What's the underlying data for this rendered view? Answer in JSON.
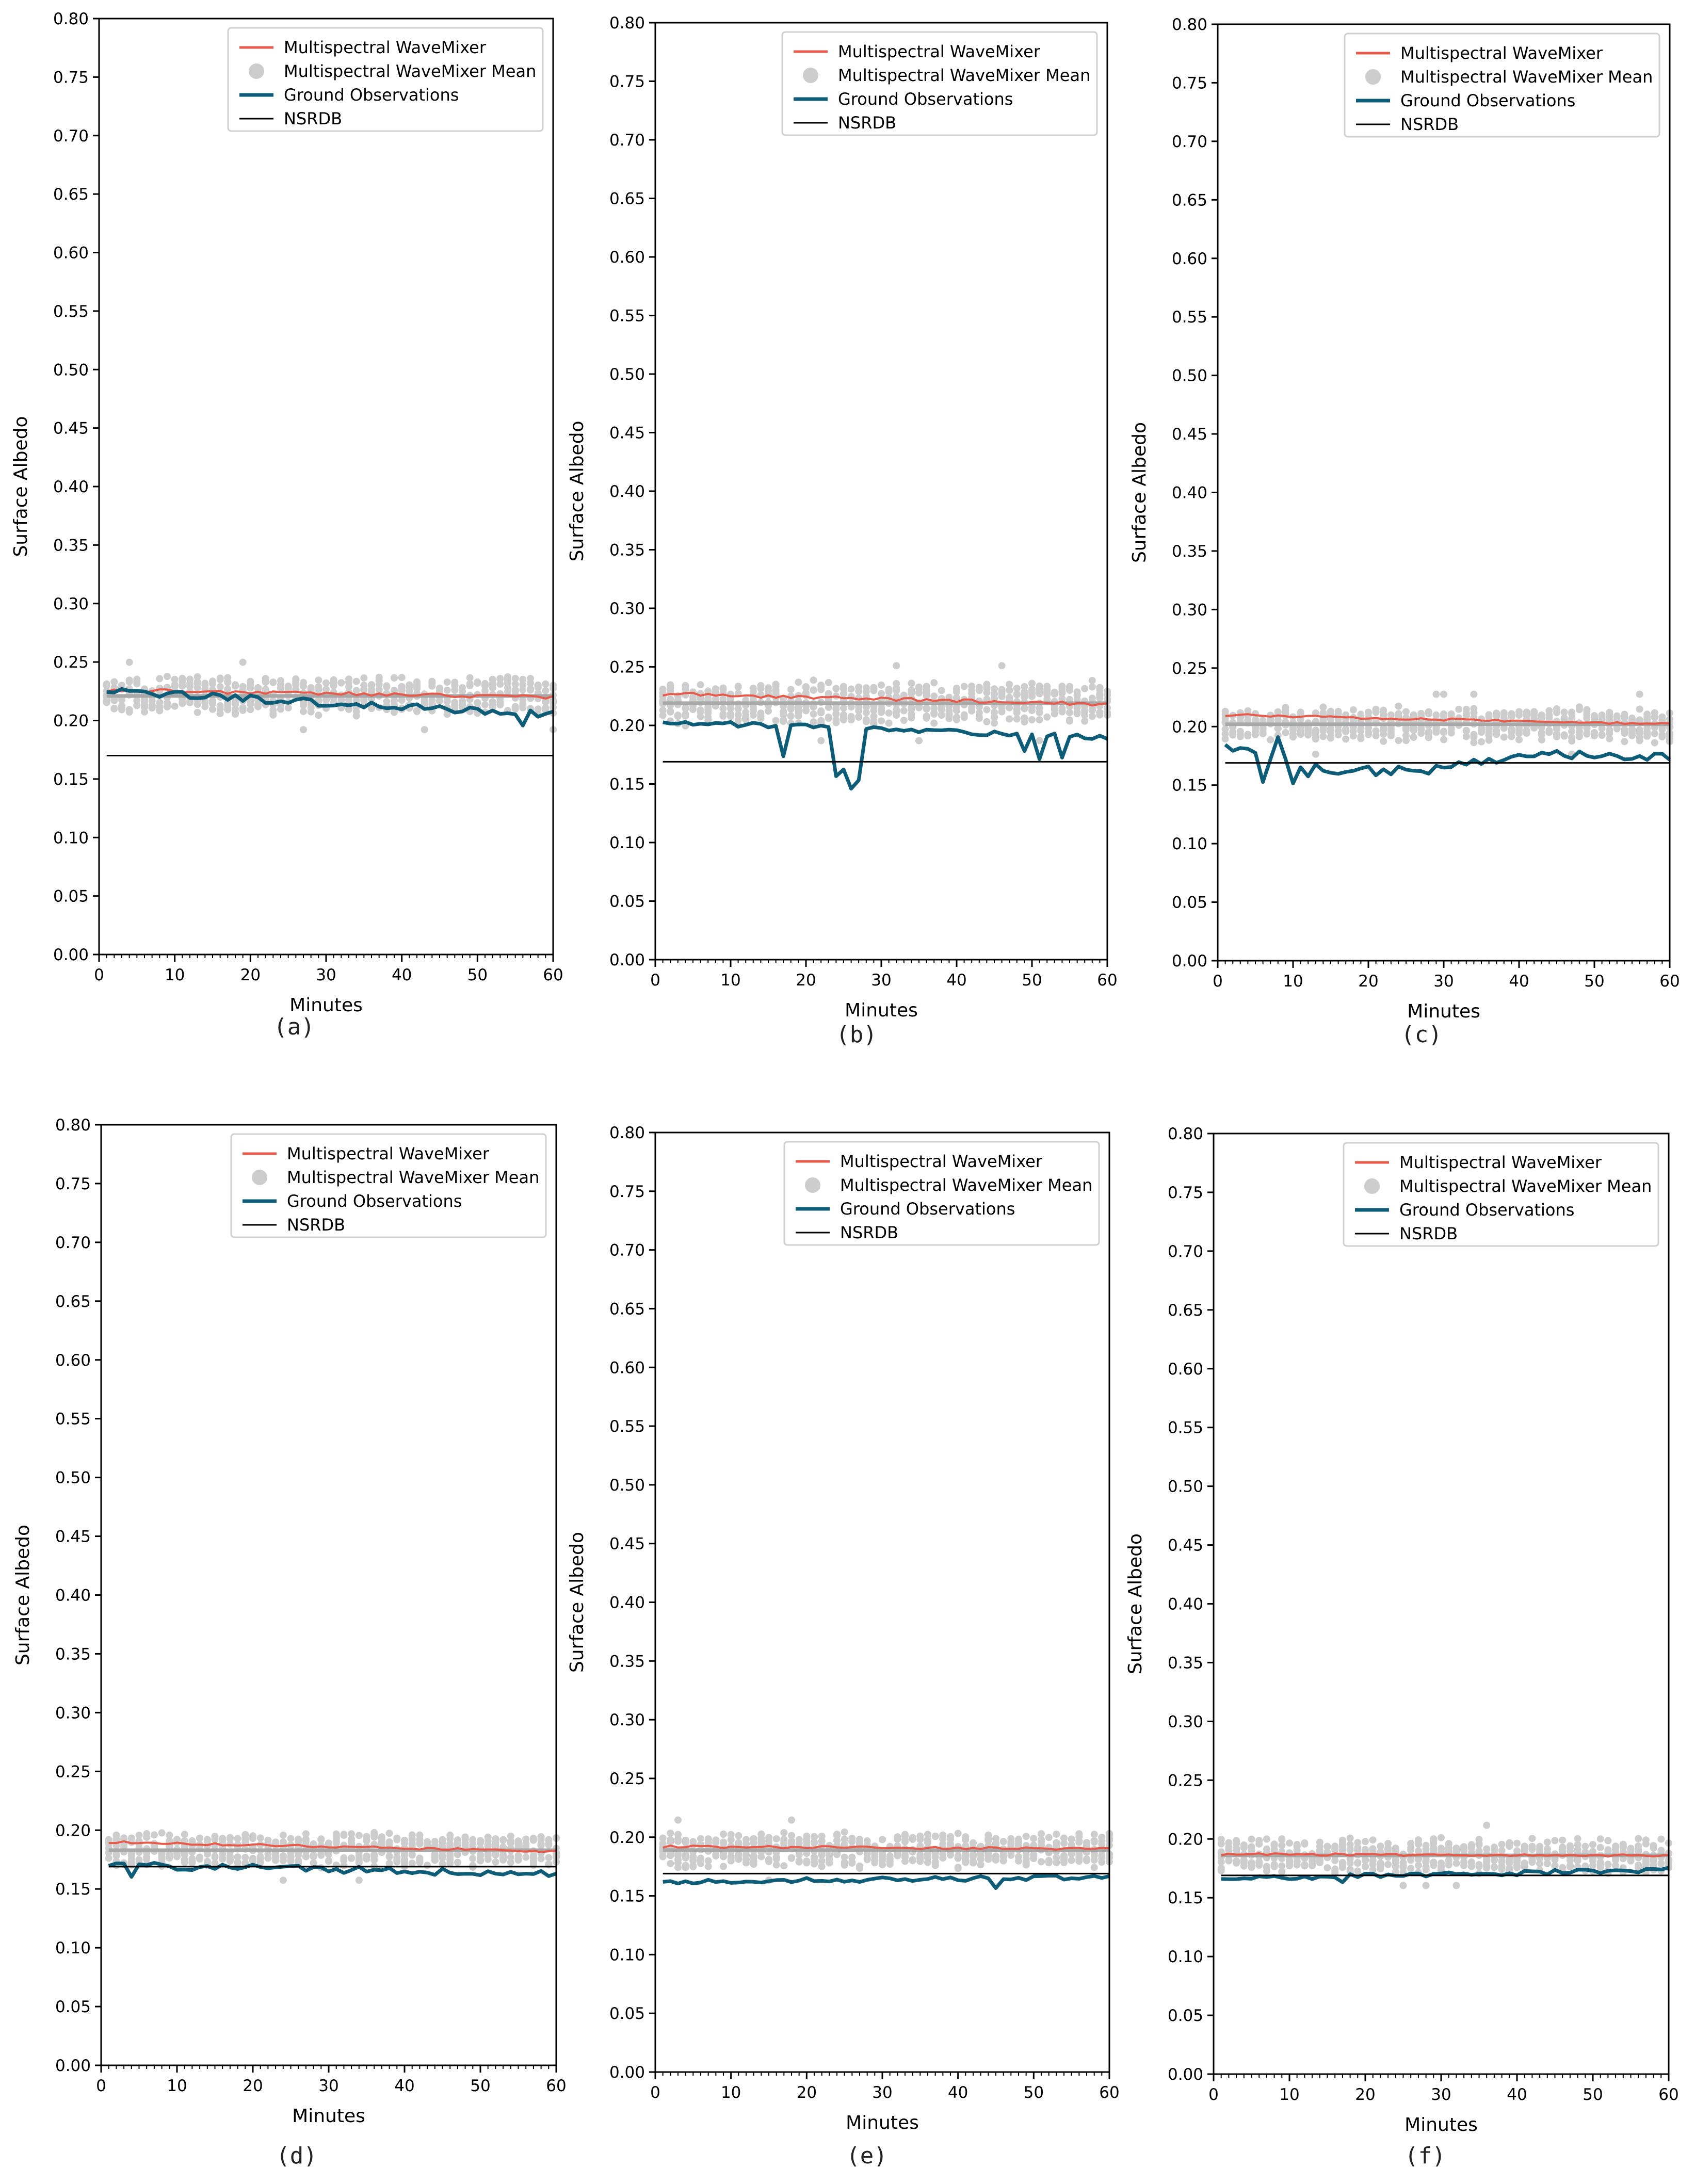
{
  "figure": {
    "title": ""
  },
  "colors": {
    "wavemixer": "#e8594a",
    "scatter": "#cdcdcd",
    "mean_line": "#a8a8a8",
    "ground": "#0d5c78",
    "nsrdb": "#000000",
    "axis": "#000000"
  },
  "legend_labels": {
    "wavemixer": "Multispectral WaveMixer",
    "mean": "Multispectral WaveMixer Mean",
    "ground": "Ground Observations",
    "nsrdb": "NSRDB"
  },
  "chart_data": [
    {
      "type": "line",
      "panel": "(a)",
      "xlabel": "Minutes",
      "ylabel": "Surface Albedo",
      "xlim": [
        0,
        60
      ],
      "ylim": [
        0,
        0.8
      ],
      "xticks": [
        0,
        10,
        20,
        30,
        40,
        50,
        60
      ],
      "yticks": [
        "0.00",
        "0.05",
        "0.10",
        "0.15",
        "0.20",
        "0.25",
        "0.30",
        "0.35",
        "0.40",
        "0.45",
        "0.50",
        "0.55",
        "0.60",
        "0.65",
        "0.70",
        "0.75",
        "0.80"
      ],
      "legend_position": "top-right",
      "series": [
        {
          "name": "Multispectral WaveMixer",
          "kind": "line",
          "start": 0.226,
          "end": 0.22,
          "noise": 0.003
        },
        {
          "name": "Multispectral WaveMixer Mean",
          "kind": "scatter",
          "level": 0.221,
          "spread": 0.018
        },
        {
          "name": "Ground Observations",
          "kind": "line",
          "start": 0.225,
          "end": 0.205,
          "noise": 0.003,
          "dips": [
            [
              56,
              -0.008
            ]
          ]
        },
        {
          "name": "NSRDB",
          "kind": "hline",
          "value": 0.17
        }
      ]
    },
    {
      "type": "line",
      "panel": "(b)",
      "xlabel": "Minutes",
      "ylabel": "Surface Albedo",
      "xlim": [
        0,
        60
      ],
      "ylim": [
        0,
        0.8
      ],
      "xticks": [
        0,
        10,
        20,
        30,
        40,
        50,
        60
      ],
      "yticks": [
        "0.00",
        "0.05",
        "0.10",
        "0.15",
        "0.20",
        "0.25",
        "0.30",
        "0.35",
        "0.40",
        "0.45",
        "0.50",
        "0.55",
        "0.60",
        "0.65",
        "0.70",
        "0.75",
        "0.80"
      ],
      "legend_position": "top-right",
      "series": [
        {
          "name": "Multispectral WaveMixer",
          "kind": "line",
          "start": 0.227,
          "end": 0.218,
          "noise": 0.003
        },
        {
          "name": "Multispectral WaveMixer Mean",
          "kind": "scatter",
          "level": 0.219,
          "spread": 0.02
        },
        {
          "name": "Ground Observations",
          "kind": "line",
          "start": 0.203,
          "end": 0.19,
          "noise": 0.002,
          "dips": [
            [
              17,
              -0.025
            ],
            [
              24,
              -0.04
            ],
            [
              25,
              -0.035
            ],
            [
              26,
              -0.05
            ],
            [
              27,
              -0.045
            ],
            [
              49,
              -0.015
            ],
            [
              51,
              -0.02
            ],
            [
              54,
              -0.02
            ]
          ]
        },
        {
          "name": "NSRDB",
          "kind": "hline",
          "value": 0.169
        }
      ]
    },
    {
      "type": "line",
      "panel": "(c)",
      "xlabel": "Minutes",
      "ylabel": "Surface Albedo",
      "xlim": [
        0,
        60
      ],
      "ylim": [
        0,
        0.8
      ],
      "xticks": [
        0,
        10,
        20,
        30,
        40,
        50,
        60
      ],
      "yticks": [
        "0.00",
        "0.05",
        "0.10",
        "0.15",
        "0.20",
        "0.25",
        "0.30",
        "0.35",
        "0.40",
        "0.45",
        "0.50",
        "0.55",
        "0.60",
        "0.65",
        "0.70",
        "0.75",
        "0.80"
      ],
      "legend_position": "top-right",
      "series": [
        {
          "name": "Multispectral WaveMixer",
          "kind": "line",
          "start": 0.21,
          "end": 0.202,
          "noise": 0.002
        },
        {
          "name": "Multispectral WaveMixer Mean",
          "kind": "scatter",
          "level": 0.202,
          "spread": 0.016
        },
        {
          "name": "Ground Observations",
          "kind": "line",
          "start": 0.185,
          "end": 0.173,
          "noise": 0.004,
          "dips": [
            [
              6,
              -0.02
            ],
            [
              8,
              0.02
            ],
            [
              10,
              -0.015
            ],
            [
              12,
              -0.012
            ]
          ],
          "mid": 0.162
        },
        {
          "name": "NSRDB",
          "kind": "hline",
          "value": 0.169
        }
      ]
    },
    {
      "type": "line",
      "panel": "(d)",
      "xlabel": "Minutes",
      "ylabel": "Surface Albedo",
      "xlim": [
        0,
        60
      ],
      "ylim": [
        0,
        0.8
      ],
      "xticks": [
        0,
        10,
        20,
        30,
        40,
        50,
        60
      ],
      "yticks": [
        "0.00",
        "0.05",
        "0.10",
        "0.15",
        "0.20",
        "0.25",
        "0.30",
        "0.35",
        "0.40",
        "0.45",
        "0.50",
        "0.55",
        "0.60",
        "0.65",
        "0.70",
        "0.75",
        "0.80"
      ],
      "legend_position": "top-right",
      "series": [
        {
          "name": "Multispectral WaveMixer",
          "kind": "line",
          "start": 0.19,
          "end": 0.182,
          "noise": 0.002
        },
        {
          "name": "Multispectral WaveMixer Mean",
          "kind": "scatter",
          "level": 0.183,
          "spread": 0.016
        },
        {
          "name": "Ground Observations",
          "kind": "line",
          "start": 0.17,
          "end": 0.163,
          "noise": 0.003,
          "dips": [
            [
              4,
              -0.01
            ]
          ]
        },
        {
          "name": "NSRDB",
          "kind": "hline",
          "value": 0.169
        }
      ]
    },
    {
      "type": "line",
      "panel": "(e)",
      "xlabel": "Minutes",
      "ylabel": "Surface Albedo",
      "xlim": [
        0,
        60
      ],
      "ylim": [
        0,
        0.8
      ],
      "xticks": [
        0,
        10,
        20,
        30,
        40,
        50,
        60
      ],
      "yticks": [
        "0.00",
        "0.05",
        "0.10",
        "0.15",
        "0.20",
        "0.25",
        "0.30",
        "0.35",
        "0.40",
        "0.45",
        "0.50",
        "0.55",
        "0.60",
        "0.65",
        "0.70",
        "0.75",
        "0.80"
      ],
      "legend_position": "top-right",
      "series": [
        {
          "name": "Multispectral WaveMixer",
          "kind": "line",
          "start": 0.192,
          "end": 0.19,
          "noise": 0.002
        },
        {
          "name": "Multispectral WaveMixer Mean",
          "kind": "scatter",
          "level": 0.189,
          "spread": 0.016
        },
        {
          "name": "Ground Observations",
          "kind": "line",
          "start": 0.162,
          "end": 0.166,
          "noise": 0.002,
          "dips": [
            [
              45,
              -0.01
            ]
          ]
        },
        {
          "name": "NSRDB",
          "kind": "hline",
          "value": 0.169
        }
      ]
    },
    {
      "type": "line",
      "panel": "(f)",
      "xlabel": "Minutes",
      "ylabel": "Surface Albedo",
      "xlim": [
        0,
        60
      ],
      "ylim": [
        0,
        0.8
      ],
      "xticks": [
        0,
        10,
        20,
        30,
        40,
        50,
        60
      ],
      "yticks": [
        "0.00",
        "0.05",
        "0.10",
        "0.15",
        "0.20",
        "0.25",
        "0.30",
        "0.35",
        "0.40",
        "0.45",
        "0.50",
        "0.55",
        "0.60",
        "0.65",
        "0.70",
        "0.75",
        "0.80"
      ],
      "legend_position": "top-right",
      "series": [
        {
          "name": "Multispectral WaveMixer",
          "kind": "line",
          "start": 0.187,
          "end": 0.186,
          "noise": 0.002
        },
        {
          "name": "Multispectral WaveMixer Mean",
          "kind": "scatter",
          "level": 0.186,
          "spread": 0.016
        },
        {
          "name": "Ground Observations",
          "kind": "line",
          "start": 0.166,
          "end": 0.174,
          "noise": 0.002,
          "dips": [
            [
              17,
              -0.006
            ],
            [
              40,
              -0.004
            ]
          ]
        },
        {
          "name": "NSRDB",
          "kind": "hline",
          "value": 0.169
        }
      ]
    }
  ]
}
